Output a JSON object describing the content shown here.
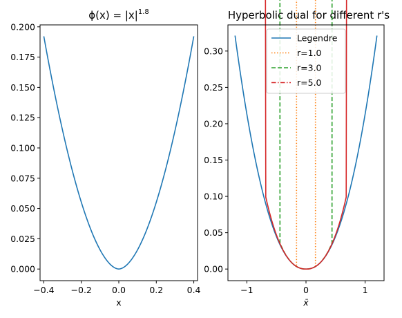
{
  "chart_data": [
    {
      "type": "line",
      "title_base": "ϕ(x) = |x|",
      "title_exp": "1.8",
      "xlabel": "x",
      "ylabel": "",
      "xlim": [
        -0.42,
        0.42
      ],
      "ylim": [
        -0.0096,
        0.2016
      ],
      "xticks": [
        -0.4,
        -0.2,
        0.0,
        0.2,
        0.4
      ],
      "xtick_labels": [
        "−0.4",
        "−0.2",
        "0.0",
        "0.2",
        "0.4"
      ],
      "yticks": [
        0.0,
        0.025,
        0.05,
        0.075,
        0.1,
        0.125,
        0.15,
        0.175,
        0.2
      ],
      "ytick_labels": [
        "0.000",
        "0.025",
        "0.050",
        "0.075",
        "0.100",
        "0.125",
        "0.150",
        "0.175",
        "0.200"
      ],
      "function": {
        "kind": "power",
        "p": 1.8,
        "x_range": [
          -0.4,
          0.4
        ],
        "samples": 101
      },
      "series": [
        {
          "name": "",
          "color": "#1f77b4",
          "style": "solid"
        }
      ],
      "grid": false
    },
    {
      "type": "line",
      "title": "Hyperbolic dual for different r's",
      "xlabel": "x̄",
      "ylabel": "",
      "xlim": [
        -1.32,
        1.32
      ],
      "ylim": [
        -0.016,
        0.336
      ],
      "xticks": [
        -1,
        0,
        1
      ],
      "xtick_labels": [
        "−1",
        "0",
        "1"
      ],
      "yticks": [
        0.0,
        0.05,
        0.1,
        0.15,
        0.2,
        0.25,
        0.3
      ],
      "ytick_labels": [
        "0.00",
        "0.05",
        "0.10",
        "0.15",
        "0.20",
        "0.25",
        "0.30"
      ],
      "x_range": [
        -1.2,
        1.2
      ],
      "samples": 121,
      "series": [
        {
          "name": "Legendre",
          "color": "#1f77b4",
          "style": "solid",
          "kind": "legendre_dual",
          "p": 1.8
        },
        {
          "name": "r=1.0",
          "color": "#ff7f0e",
          "style": "dotted",
          "kind": "hyperbolic_dual",
          "p": 1.8,
          "r": 1.0
        },
        {
          "name": "r=3.0",
          "color": "#2ca02c",
          "style": "dashed",
          "kind": "hyperbolic_dual",
          "p": 1.8,
          "r": 3.0
        },
        {
          "name": "r=5.0",
          "color": "#d62728",
          "style": "dashdot",
          "kind": "hyperbolic_dual",
          "p": 1.8,
          "r": 5.0
        }
      ],
      "legend": {
        "placement": "top-center"
      },
      "grid": false
    }
  ]
}
